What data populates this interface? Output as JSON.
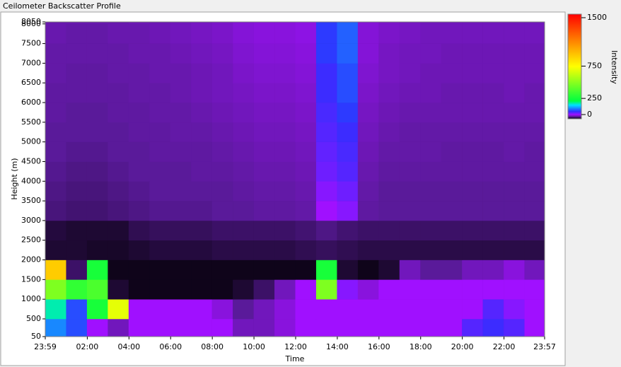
{
  "chart_data": {
    "type": "heatmap",
    "title": "Ceilometer Backscatter Profile",
    "xlabel": "Time",
    "ylabel": "Height (m)",
    "colorbar_label": "Intensity",
    "xlim": [
      0,
      1438
    ],
    "xticks": [
      {
        "value": 0,
        "label": "23:59"
      },
      {
        "value": 121,
        "label": "02:00"
      },
      {
        "value": 241,
        "label": "04:00"
      },
      {
        "value": 361,
        "label": "06:00"
      },
      {
        "value": 481,
        "label": "08:00"
      },
      {
        "value": 601,
        "label": "10:00"
      },
      {
        "value": 721,
        "label": "12:00"
      },
      {
        "value": 841,
        "label": "14:00"
      },
      {
        "value": 961,
        "label": "16:00"
      },
      {
        "value": 1081,
        "label": "18:00"
      },
      {
        "value": 1201,
        "label": "20:00"
      },
      {
        "value": 1321,
        "label": "22:00"
      },
      {
        "value": 1438,
        "label": "23:57"
      }
    ],
    "ylim": [
      50,
      8050
    ],
    "yticks": [
      50,
      500,
      1000,
      1500,
      2000,
      2500,
      3000,
      3500,
      4000,
      4500,
      5000,
      5500,
      6000,
      6500,
      7000,
      7500,
      8000,
      8050
    ],
    "zlim": [
      0,
      1500
    ],
    "zticks": [
      0,
      250,
      750,
      1500
    ],
    "xbins": [
      0,
      60,
      120,
      180,
      240,
      300,
      360,
      420,
      480,
      540,
      600,
      660,
      720,
      780,
      840,
      900,
      960,
      1020,
      1080,
      1140,
      1200,
      1260,
      1320,
      1380,
      1438
    ],
    "ybins": [
      50,
      500,
      1000,
      1500,
      2000,
      2500,
      3000,
      3500,
      4000,
      4500,
      5000,
      5500,
      6000,
      6500,
      7000,
      7500,
      8000,
      8050
    ],
    "z": [
      [
        150,
        120,
        60,
        40,
        60,
        60,
        60,
        60,
        60,
        40,
        40,
        50,
        60,
        60,
        60,
        60,
        60,
        60,
        60,
        60,
        90,
        100,
        90,
        60
      ],
      [
        220,
        120,
        300,
        700,
        60,
        60,
        60,
        60,
        50,
        30,
        40,
        50,
        60,
        60,
        60,
        60,
        60,
        60,
        60,
        60,
        60,
        90,
        70,
        60
      ],
      [
        500,
        350,
        400,
        10,
        5,
        5,
        5,
        5,
        5,
        10,
        20,
        40,
        60,
        500,
        70,
        50,
        60,
        60,
        60,
        60,
        60,
        60,
        60,
        60
      ],
      [
        900,
        20,
        300,
        5,
        5,
        5,
        5,
        5,
        5,
        5,
        5,
        5,
        5,
        300,
        10,
        5,
        10,
        40,
        30,
        30,
        40,
        40,
        50,
        40
      ],
      [
        10,
        10,
        8,
        8,
        10,
        12,
        12,
        12,
        14,
        14,
        14,
        14,
        16,
        18,
        16,
        14,
        14,
        14,
        14,
        14,
        14,
        14,
        14,
        14
      ],
      [
        12,
        10,
        10,
        10,
        16,
        18,
        18,
        18,
        20,
        20,
        20,
        20,
        22,
        26,
        22,
        20,
        20,
        20,
        20,
        20,
        20,
        20,
        20,
        20
      ],
      [
        24,
        22,
        22,
        24,
        26,
        28,
        28,
        28,
        30,
        30,
        32,
        32,
        34,
        60,
        70,
        32,
        30,
        30,
        30,
        30,
        30,
        30,
        30,
        30
      ],
      [
        26,
        24,
        24,
        26,
        28,
        30,
        30,
        30,
        30,
        32,
        34,
        34,
        36,
        70,
        80,
        34,
        30,
        30,
        30,
        30,
        30,
        30,
        30,
        30
      ],
      [
        28,
        26,
        26,
        28,
        30,
        30,
        30,
        32,
        32,
        34,
        36,
        36,
        38,
        80,
        90,
        36,
        32,
        32,
        32,
        32,
        32,
        32,
        32,
        32
      ],
      [
        30,
        28,
        28,
        30,
        30,
        32,
        32,
        32,
        34,
        36,
        38,
        38,
        40,
        85,
        95,
        38,
        34,
        34,
        34,
        32,
        32,
        32,
        34,
        32
      ],
      [
        30,
        30,
        30,
        30,
        32,
        32,
        34,
        34,
        36,
        38,
        40,
        40,
        42,
        90,
        100,
        40,
        36,
        34,
        34,
        34,
        34,
        34,
        34,
        34
      ],
      [
        32,
        30,
        30,
        32,
        32,
        34,
        34,
        36,
        38,
        40,
        42,
        42,
        44,
        95,
        110,
        42,
        38,
        36,
        36,
        36,
        36,
        36,
        36,
        36
      ],
      [
        32,
        32,
        32,
        32,
        34,
        34,
        36,
        38,
        40,
        42,
        44,
        44,
        46,
        100,
        120,
        44,
        40,
        38,
        38,
        36,
        36,
        36,
        38,
        36
      ],
      [
        34,
        32,
        32,
        34,
        34,
        36,
        36,
        38,
        40,
        44,
        46,
        46,
        48,
        100,
        120,
        46,
        42,
        40,
        38,
        38,
        38,
        38,
        38,
        38
      ],
      [
        34,
        34,
        34,
        34,
        36,
        36,
        38,
        40,
        42,
        46,
        48,
        48,
        50,
        110,
        130,
        48,
        42,
        40,
        40,
        38,
        38,
        38,
        38,
        38
      ],
      [
        36,
        34,
        34,
        36,
        36,
        38,
        40,
        42,
        44,
        48,
        50,
        50,
        52,
        110,
        130,
        48,
        44,
        42,
        40,
        40,
        40,
        40,
        40,
        40
      ],
      [
        36,
        36,
        36,
        36,
        38,
        38,
        40,
        42,
        44,
        48,
        50,
        50,
        52,
        110,
        130,
        48,
        44,
        42,
        40,
        40,
        40,
        40,
        40,
        40
      ]
    ]
  }
}
